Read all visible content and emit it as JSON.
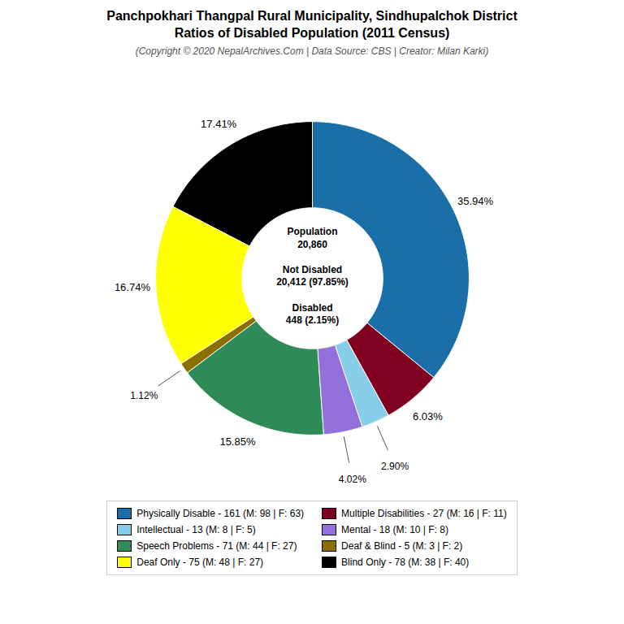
{
  "chart_data": {
    "type": "donut",
    "title": "Panchpokhari Thangpal Rural Municipality, Sindhupalchok District\nRatios of Disabled Population (2011 Census)",
    "subtitle": "(Copyright © 2020 NepalArchives.Com | Data Source: CBS | Creator: Milan Karki)",
    "categories": [
      "Physically Disable - 161 (M: 98 | F: 63)",
      "Multiple Disabilities - 27 (M: 16 | F: 11)",
      "Intellectual - 13 (M: 8 | F: 5)",
      "Mental - 18 (M: 10 | F: 8)",
      "Speech Problems - 71 (M: 44 | F: 27)",
      "Deaf & Blind - 5 (M: 3 | F: 2)",
      "Deaf Only - 75 (M: 48 | F: 27)",
      "Blind Only - 78 (M: 38 | F: 40)"
    ],
    "values": [
      35.94,
      6.03,
      2.9,
      4.02,
      15.85,
      1.12,
      16.74,
      17.41
    ],
    "value_labels": [
      "35.94%",
      "6.03%",
      "2.90%",
      "4.02%",
      "15.85%",
      "1.12%",
      "16.74%",
      "17.41%"
    ],
    "colors": [
      "#1b6fa8",
      "#800020",
      "#87ceeb",
      "#9370db",
      "#2e8b57",
      "#8b7000",
      "#ffff00",
      "#000000"
    ],
    "annotations": [
      "Population\n20,860\n\nNot Disabled\n20,412 (97.85%)\n\nDisabled\n448 (2.15%)"
    ],
    "data_labels": true,
    "legend": "bottom"
  }
}
